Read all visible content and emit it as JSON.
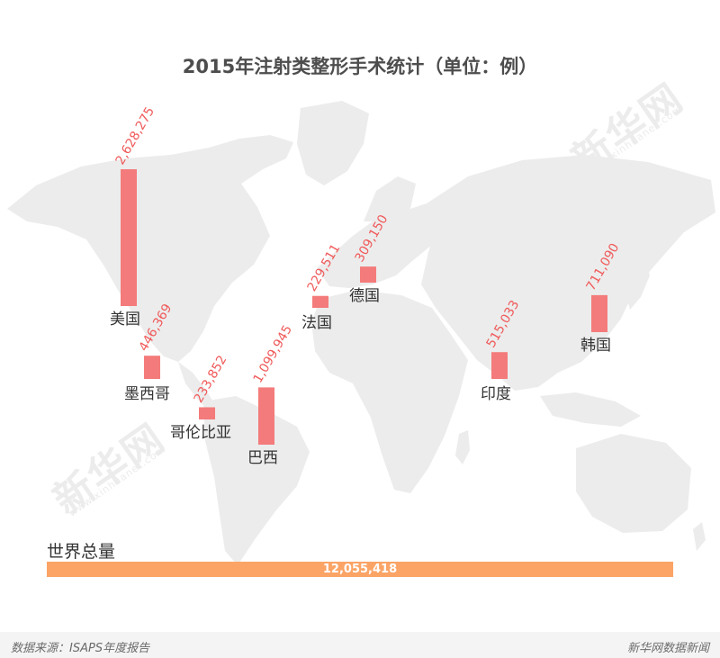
{
  "title": "2015年注射类整形手术统计（单位：例）",
  "chart_data": {
    "type": "bar",
    "title": "2015年注射类整形手术统计（单位：例）",
    "categories": [
      "美国",
      "墨西哥",
      "哥伦比亚",
      "巴西",
      "法国",
      "德国",
      "印度",
      "韩国"
    ],
    "values": [
      2628275,
      446369,
      233852,
      1099945,
      229511,
      309150,
      515033,
      711090
    ],
    "value_labels": [
      "2,628,275",
      "446,369",
      "233,852",
      "1,099,945",
      "229,511",
      "309,150",
      "515,033",
      "711,090"
    ],
    "bar_color": "#f47b7b",
    "total": {
      "label": "世界总量",
      "value": 12055418,
      "value_label": "12,055,418",
      "color": "#fba466"
    }
  },
  "watermark": {
    "text": "新华网",
    "sub": "www.xinhuanet.com"
  },
  "footer": {
    "source": "数据来源：ISAPS年度报告",
    "brand": "新华网数据新闻"
  }
}
